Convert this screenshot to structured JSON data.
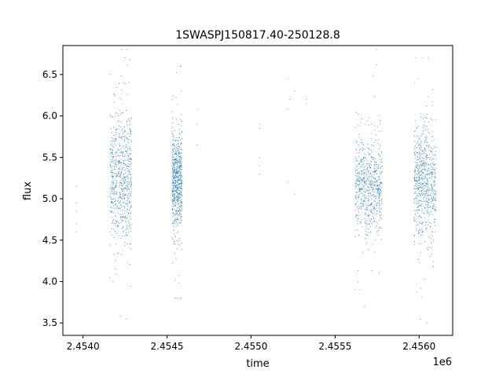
{
  "chart_data": {
    "type": "scatter",
    "title": "1SWASPJ150817.40-250128.8",
    "xlabel": "time",
    "ylabel": "flux",
    "x_offset_label": "1e6",
    "xlim": [
      2453880,
      2456200
    ],
    "ylim": [
      3.35,
      6.85
    ],
    "x_ticks": [
      2454000,
      2454500,
      2455000,
      2455500,
      2456000
    ],
    "x_tick_labels": [
      "2.4540",
      "2.4545",
      "2.4550",
      "2.4555",
      "2.4560"
    ],
    "y_ticks": [
      3.5,
      4.0,
      4.5,
      5.0,
      5.5,
      6.0,
      6.5
    ],
    "y_tick_labels": [
      "3.5",
      "4.0",
      "4.5",
      "5.0",
      "5.5",
      "6.0",
      "6.5"
    ],
    "grid": false,
    "point_color": "#1f77b4",
    "clusters": [
      {
        "x_range": [
          2454160,
          2454290
        ],
        "y_center": 5.25,
        "y_spread": 0.38,
        "y_min": 3.55,
        "y_max": 6.8
      },
      {
        "x_range": [
          2454530,
          2454590
        ],
        "y_center": 5.22,
        "y_spread": 0.3,
        "y_min": 3.8,
        "y_max": 6.6
      },
      {
        "x_range": [
          2455620,
          2455780
        ],
        "y_center": 5.15,
        "y_spread": 0.3,
        "y_min": 3.7,
        "y_max": 6.8
      },
      {
        "x_range": [
          2455970,
          2456100
        ],
        "y_center": 5.2,
        "y_spread": 0.33,
        "y_min": 3.5,
        "y_max": 6.7
      }
    ],
    "isolated_points": [
      [
        2453960,
        5.15
      ],
      [
        2453960,
        4.95
      ],
      [
        2453960,
        4.85
      ],
      [
        2453960,
        4.7
      ],
      [
        2453960,
        4.6
      ],
      [
        2454680,
        6.08
      ],
      [
        2454680,
        5.65
      ],
      [
        2454680,
        5.9
      ],
      [
        2455050,
        5.9
      ],
      [
        2455050,
        5.85
      ],
      [
        2455050,
        5.5
      ],
      [
        2455050,
        5.3
      ],
      [
        2455050,
        5.4
      ],
      [
        2455220,
        6.45
      ],
      [
        2455220,
        6.08
      ],
      [
        2455220,
        5.2
      ],
      [
        2455230,
        6.2
      ],
      [
        2455260,
        6.3
      ],
      [
        2455260,
        5.05
      ],
      [
        2455330,
        6.2
      ],
      [
        2455330,
        6.15
      ]
    ]
  }
}
